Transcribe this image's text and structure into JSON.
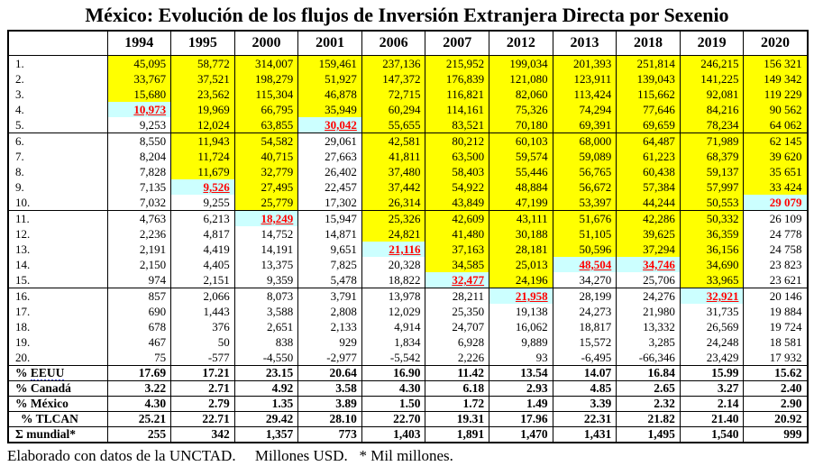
{
  "title": "México: Evolución de los flujos de Inversión Extranjera Directa por Sexenio",
  "footer": "Elaborado con datos de la UNCTAD.     Millones USD.   * Mil millones.",
  "colors": {
    "highlight_yellow": "#FFFF00",
    "highlight_cyan": "#CCFFFF",
    "highlight_text_red": "#FF0000",
    "squiggle_blue": "#3B48E0"
  },
  "table": {
    "columns": [
      "1994",
      "1995",
      "2000",
      "2001",
      "2006",
      "2007",
      "2012",
      "2013",
      "2018",
      "2019",
      "2020"
    ],
    "row_labels": [
      "1.",
      "2.",
      "3.",
      "4.",
      "5.",
      "6.",
      "7.",
      "8.",
      "9.",
      "10.",
      "11.",
      "12.",
      "13.",
      "14.",
      "15.",
      "16.",
      "17.",
      "18.",
      "19.",
      "20."
    ],
    "rows": [
      [
        "45,095",
        "58,772",
        "314,007",
        "159,461",
        "237,136",
        "215,952",
        "199,034",
        "201,393",
        "251,814",
        "246,215",
        "156 321"
      ],
      [
        "33,767",
        "37,521",
        "198,279",
        "51,927",
        "147,372",
        "176,839",
        "121,080",
        "123,911",
        "139,043",
        "141,225",
        "149 342"
      ],
      [
        "15,680",
        "23,562",
        "115,304",
        "46,878",
        "72,715",
        "116,821",
        "82,060",
        "113,424",
        "115,662",
        "92,081",
        "119 229"
      ],
      [
        "10,973",
        "19,969",
        "66,795",
        "35,949",
        "60,294",
        "114,161",
        "75,326",
        "74,294",
        "77,646",
        "84,216",
        "90 562"
      ],
      [
        "9,253",
        "12,024",
        "63,855",
        "30,042",
        "55,655",
        "83,521",
        "70,180",
        "69,391",
        "69,659",
        "78,234",
        "64 062"
      ],
      [
        "8,550",
        "11,943",
        "54,582",
        "29,061",
        "42,581",
        "80,212",
        "60,103",
        "68,000",
        "64,487",
        "71,989",
        "62 145"
      ],
      [
        "8,204",
        "11,724",
        "40,715",
        "27,663",
        "41,811",
        "63,500",
        "59,574",
        "59,089",
        "61,223",
        "68,379",
        "39 620"
      ],
      [
        "7,828",
        "11,679",
        "32,779",
        "26,402",
        "37,480",
        "58,403",
        "55,446",
        "56,765",
        "60,438",
        "59,137",
        "35 651"
      ],
      [
        "7,135",
        "9,526",
        "27,495",
        "22,457",
        "37,442",
        "54,922",
        "48,884",
        "56,672",
        "57,384",
        "57,997",
        "33 424"
      ],
      [
        "7,032",
        "9,255",
        "25,779",
        "17,302",
        "26,314",
        "43,849",
        "47,199",
        "53,397",
        "44,244",
        "50,553",
        "29 079"
      ],
      [
        "4,763",
        "6,213",
        "18,249",
        "15,947",
        "25,326",
        "42,609",
        "43,111",
        "51,676",
        "42,286",
        "50,332",
        "26 109"
      ],
      [
        "2,236",
        "4,817",
        "14,752",
        "14,871",
        "24,821",
        "41,480",
        "30,188",
        "51,105",
        "39,625",
        "36,359",
        "24 778"
      ],
      [
        "2,191",
        "4,419",
        "14,191",
        "9,651",
        "21,116",
        "37,163",
        "28,181",
        "50,596",
        "37,294",
        "36,156",
        "24 758"
      ],
      [
        "2,150",
        "4,405",
        "13,375",
        "7,825",
        "20,328",
        "34,585",
        "25,013",
        "48,504",
        "34,746",
        "34,690",
        "23 823"
      ],
      [
        "974",
        "2,151",
        "9,359",
        "5,478",
        "18,822",
        "32,477",
        "24,196",
        "34,270",
        "25,706",
        "33,965",
        "23 621"
      ],
      [
        "857",
        "2,066",
        "8,073",
        "3,791",
        "13,978",
        "28,211",
        "21,958",
        "28,199",
        "24,276",
        "32,921",
        "20 146"
      ],
      [
        "690",
        "1,443",
        "3,588",
        "2,808",
        "12,029",
        "25,350",
        "19,138",
        "24,273",
        "21,980",
        "31,735",
        "19 884"
      ],
      [
        "678",
        "376",
        "2,651",
        "2,133",
        "4,914",
        "24,707",
        "16,062",
        "18,817",
        "13,332",
        "26,569",
        "19 724"
      ],
      [
        "467",
        "50",
        "838",
        "929",
        "1,834",
        "6,928",
        "9,889",
        "15,572",
        "3,285",
        "24,248",
        "18 581"
      ],
      [
        "75",
        "-577",
        "-4,550",
        "-2,977",
        "-5,542",
        "2,226",
        "93",
        "-6,495",
        "-66,346",
        "23,429",
        "17 932"
      ]
    ],
    "summary_rows": [
      {
        "label": "% EEUU",
        "squiggle_word": "EEUU",
        "indent": false,
        "values": [
          "17.69",
          "17.21",
          "23.15",
          "20.64",
          "16.90",
          "11.42",
          "13.54",
          "14.07",
          "16.84",
          "15.99",
          "15.62"
        ]
      },
      {
        "label": "% Canadá",
        "indent": false,
        "values": [
          "3.22",
          "2.71",
          "4.92",
          "3.58",
          "4.30",
          "6.18",
          "2.93",
          "4.85",
          "2.65",
          "3.27",
          "2.40"
        ]
      },
      {
        "label": "% México",
        "indent": false,
        "values": [
          "4.30",
          "2.79",
          "1.35",
          "3.89",
          "1.50",
          "1.72",
          "1.49",
          "3.39",
          "2.32",
          "2.14",
          "2.90"
        ]
      },
      {
        "label": "% TLCAN",
        "indent": true,
        "values": [
          "25.21",
          "22.71",
          "29.42",
          "28.10",
          "22.70",
          "19.31",
          "17.96",
          "22.31",
          "21.82",
          "21.40",
          "20.92"
        ]
      },
      {
        "label": "Σ mundial*",
        "indent": false,
        "values": [
          "255",
          "342",
          "1,357",
          "773",
          "1,403",
          "1,891",
          "1,470",
          "1,431",
          "1,495",
          "1,540",
          "999"
        ]
      }
    ],
    "highlights": {
      "1994": {
        "yellow_through": 3,
        "cyan_row": 4,
        "underline": true
      },
      "1995": {
        "yellow_through": 8,
        "cyan_row": 9,
        "underline": true
      },
      "2000": {
        "yellow_through": 10,
        "cyan_row": 11,
        "underline": true
      },
      "2001": {
        "yellow_through": 4,
        "cyan_row": 5,
        "underline": true
      },
      "2006": {
        "yellow_through": 12,
        "cyan_row": 13,
        "underline": true
      },
      "2007": {
        "yellow_through": 14,
        "cyan_row": 15,
        "underline": true
      },
      "2012": {
        "yellow_through": 15,
        "cyan_row": 16,
        "underline": true
      },
      "2013": {
        "yellow_through": 13,
        "cyan_row": 14,
        "underline": true
      },
      "2018": {
        "yellow_through": 13,
        "cyan_row": 14,
        "underline": true
      },
      "2019": {
        "yellow_through": 15,
        "cyan_row": 16,
        "underline": true
      },
      "2020": {
        "yellow_through": 9,
        "cyan_row": 10,
        "underline": false
      }
    }
  }
}
